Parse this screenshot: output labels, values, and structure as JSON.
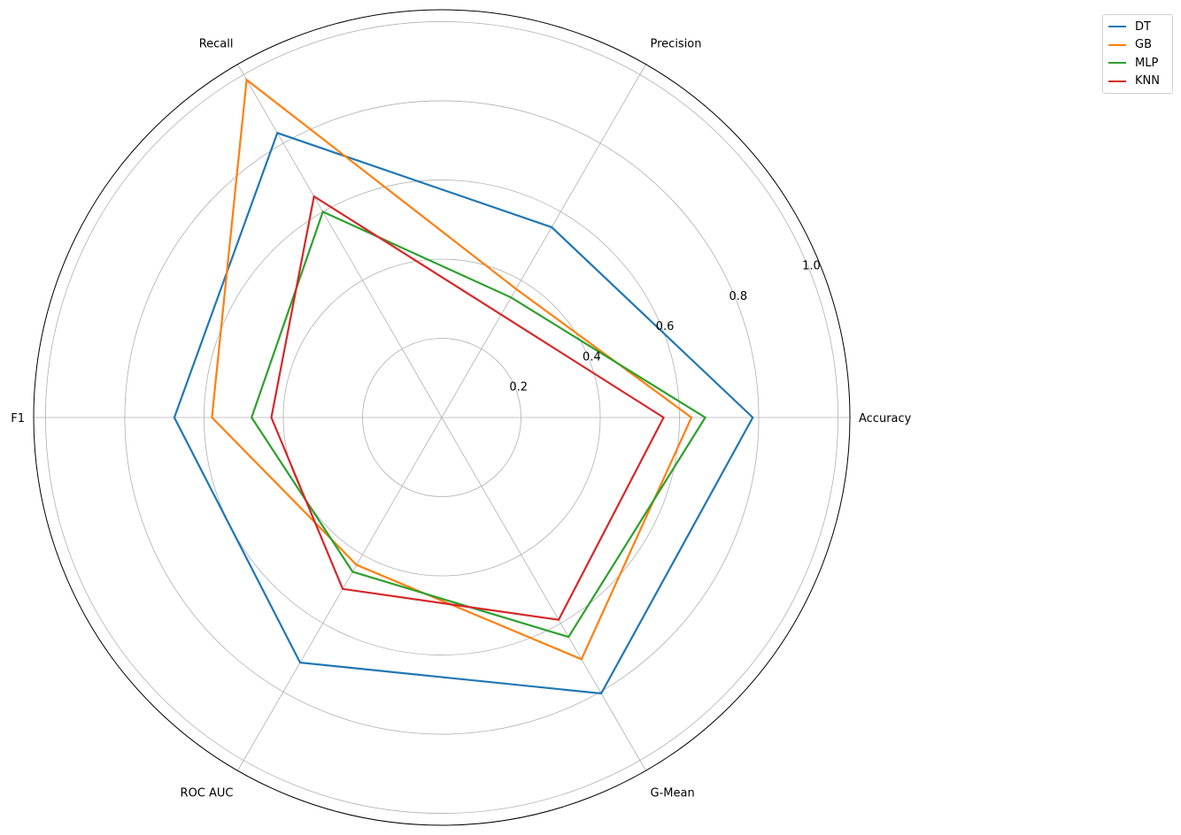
{
  "chart_data": {
    "type": "radar",
    "axes": [
      "Accuracy",
      "Precision",
      "Recall",
      "F1",
      "ROC AUC",
      "G-Mean"
    ],
    "rlim": [
      0,
      1.03
    ],
    "rticks": [
      0.2,
      0.4,
      0.6,
      0.8,
      1.0
    ],
    "rtick_labels": [
      "0.2",
      "0.4",
      "0.6",
      "0.8",
      "1.0"
    ],
    "grid": true,
    "legend_position": "top-right",
    "series": [
      {
        "name": "DT",
        "color": "#1f77b4",
        "values": [
          0.785,
          0.555,
          0.83,
          0.675,
          0.715,
          0.805
        ]
      },
      {
        "name": "GB",
        "color": "#ff7f0e",
        "values": [
          0.63,
          0.375,
          0.985,
          0.58,
          0.43,
          0.705
        ]
      },
      {
        "name": "MLP",
        "color": "#2ca02c",
        "values": [
          0.665,
          0.35,
          0.6,
          0.48,
          0.45,
          0.64
        ]
      },
      {
        "name": "KNN",
        "color": "#d62728",
        "values": [
          0.56,
          0.3,
          0.645,
          0.43,
          0.5,
          0.59
        ]
      }
    ]
  }
}
